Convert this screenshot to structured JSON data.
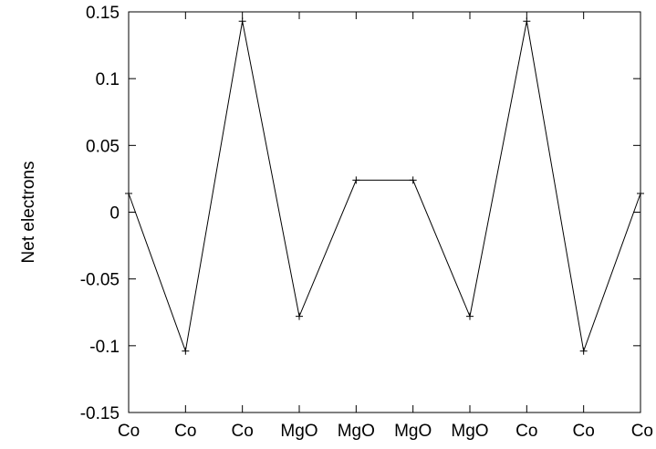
{
  "chart_data": {
    "type": "line",
    "title": "",
    "xlabel": "",
    "ylabel": "Net electrons",
    "ylim": [
      -0.15,
      0.15
    ],
    "yticks": [
      -0.15,
      -0.1,
      -0.05,
      0,
      0.05,
      0.1,
      0.15
    ],
    "ytick_labels": [
      "-0.15",
      "-0.1",
      "-0.05",
      "0",
      "0.05",
      "0.1",
      "0.15"
    ],
    "categories": [
      "Co",
      "Co",
      "Co",
      "MgO",
      "MgO",
      "MgO",
      "MgO",
      "Co",
      "Co",
      "Co"
    ],
    "grid": false,
    "legend": "none",
    "series": [
      {
        "values": [
          0.014,
          -0.104,
          0.143,
          -0.078,
          0.024,
          0.024,
          -0.078,
          0.143,
          -0.104,
          0.014
        ],
        "color": "#000000",
        "marker": "plus"
      }
    ]
  }
}
